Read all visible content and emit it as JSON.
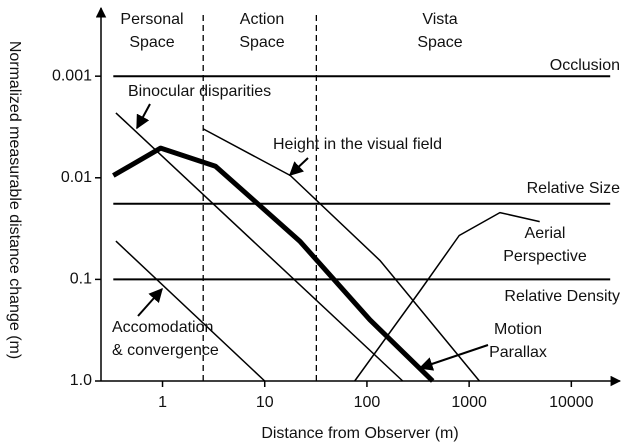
{
  "chart_data": {
    "type": "line",
    "xlabel": "Distance from Observer (m)",
    "ylabel": "Normalized measurable distance change (m)",
    "xscale": "log",
    "yscale": "log",
    "xlim": [
      0.25,
      25000
    ],
    "ylim": [
      1,
      0.00025
    ],
    "xticks": [
      1,
      10,
      100,
      1000,
      10000
    ],
    "yticks": [
      0.001,
      0.01,
      0.1,
      {
        "value": 1,
        "label": "1.0"
      }
    ],
    "regions": [
      {
        "label": [
          "Personal",
          "Space"
        ]
      },
      {
        "label": [
          "Action",
          "Space"
        ]
      },
      {
        "label": [
          "Vista",
          "Space"
        ]
      }
    ],
    "boundaries": [
      2.5,
      32
    ],
    "series": [
      {
        "name": [
          "Occlusion"
        ],
        "color": "#000000",
        "width": 2,
        "x": [
          0.33,
          24000
        ],
        "y": [
          0.001,
          0.001
        ]
      },
      {
        "name": [
          "Relative Size"
        ],
        "color": "#000000",
        "width": 2,
        "x": [
          0.33,
          24000
        ],
        "y": [
          0.018,
          0.018
        ]
      },
      {
        "name": [
          "Relative Density"
        ],
        "color": "#000000",
        "width": 2,
        "x": [
          0.33,
          24000
        ],
        "y": [
          0.1,
          0.1
        ]
      },
      {
        "name": [
          "Binocular disparities"
        ],
        "color": "#000000",
        "width": 1.5,
        "x": [
          0.35,
          224
        ],
        "y": [
          0.0023,
          1
        ]
      },
      {
        "name": [
          "Height in the visual field"
        ],
        "color": "#000000",
        "width": 1.5,
        "x": [
          2.5,
          17.8,
          134,
          1260
        ],
        "y": [
          0.0033,
          0.0095,
          0.065,
          1
        ]
      },
      {
        "name": [
          "Motion",
          "Parallax"
        ],
        "color": "#000000",
        "width": 5,
        "x": [
          0.33,
          0.96,
          3.3,
          22,
          107,
          440
        ],
        "y": [
          0.0095,
          0.0051,
          0.0077,
          0.042,
          0.25,
          1
        ]
      },
      {
        "name": [
          "Aerial",
          "Perspective"
        ],
        "color": "#000000",
        "width": 1.5,
        "x": [
          76,
          330,
          800,
          2000,
          4900
        ],
        "y": [
          1,
          0.13,
          0.037,
          0.022,
          0.027
        ]
      },
      {
        "name": [
          "Accomodation",
          "& convergence"
        ],
        "color": "#000000",
        "width": 1.5,
        "x": [
          0.35,
          10
        ],
        "y": [
          0.042,
          1
        ]
      }
    ]
  }
}
